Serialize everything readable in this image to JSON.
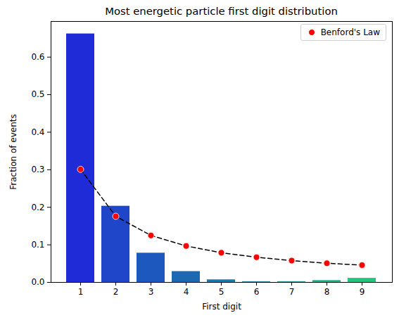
{
  "chart_data": {
    "type": "bar",
    "title": "Most energetic particle first digit distribution",
    "x_label": "First digit",
    "y_label": "Fraction of events",
    "categories": [
      1,
      2,
      3,
      4,
      5,
      6,
      7,
      8,
      9
    ],
    "series": [
      {
        "type": "bar",
        "values": [
          0.662,
          0.203,
          0.078,
          0.029,
          0.007,
          0.002,
          0.002,
          0.005,
          0.011
        ],
        "colors": [
          "#1f2bd6",
          "#1f45c8",
          "#1c58bd",
          "#1c68b2",
          "#1b79a8",
          "#1c8a9f",
          "#1d9c95",
          "#1fae8a",
          "#22c47f"
        ]
      },
      {
        "type": "scatter",
        "name": "Benford's Law",
        "color": "#ff0000",
        "marker": "circle",
        "line_style": "dashed",
        "values": [
          0.301,
          0.176,
          0.125,
          0.097,
          0.079,
          0.067,
          0.058,
          0.051,
          0.046
        ]
      }
    ],
    "ylim": [
      0,
      0.695
    ],
    "yticks": [
      {
        "value": 0,
        "label": "0.0"
      },
      {
        "value": 0.1,
        "label": "0.1"
      },
      {
        "value": 0.2,
        "label": "0.2"
      },
      {
        "value": 0.3,
        "label": "0.3"
      },
      {
        "value": 0.4,
        "label": "0.4"
      },
      {
        "value": 0.5,
        "label": "0.5"
      },
      {
        "value": 0.6,
        "label": "0.6"
      }
    ],
    "grid": false,
    "legend": "upper right"
  }
}
